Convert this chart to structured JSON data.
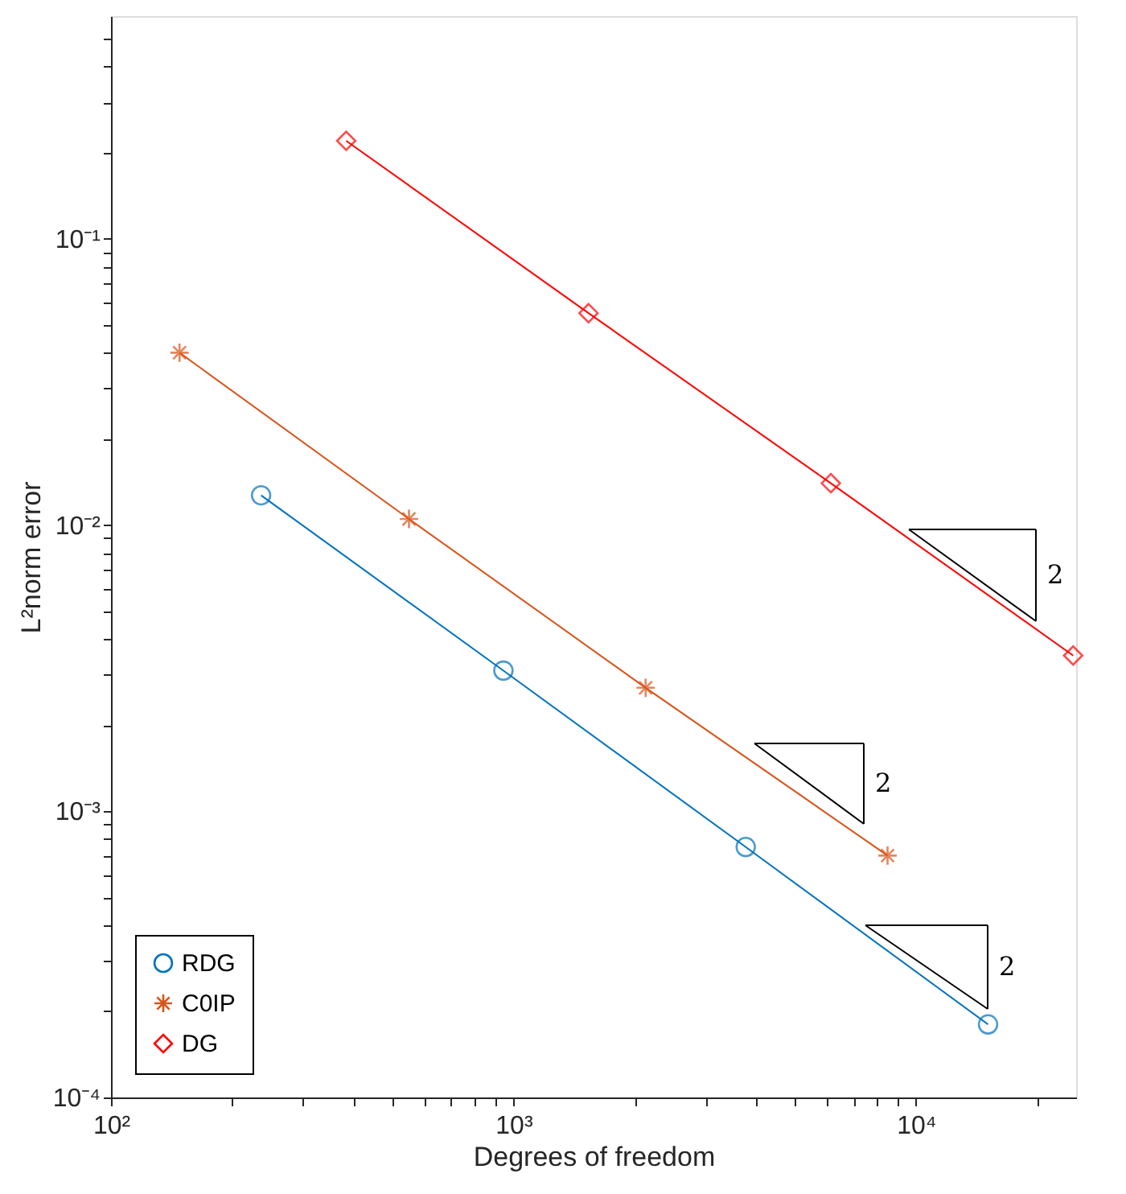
{
  "chart_data": {
    "type": "line",
    "xlabel": "Degrees of freedom",
    "ylabel": "L²norm error",
    "log": "xy",
    "grid": false,
    "legend": "bottom left",
    "line_style": "solid",
    "xlim": [
      100,
      25000
    ],
    "ylim": [
      0.0001,
      0.6
    ],
    "xticks": [
      {
        "value": 100,
        "label": "10²"
      },
      {
        "value": 200,
        "label": null
      },
      {
        "value": 300,
        "label": null
      },
      {
        "value": 400,
        "label": null
      },
      {
        "value": 500,
        "label": null
      },
      {
        "value": 600,
        "label": null
      },
      {
        "value": 700,
        "label": null
      },
      {
        "value": 800,
        "label": null
      },
      {
        "value": 900,
        "label": null
      },
      {
        "value": 1000,
        "label": "10³"
      },
      {
        "value": 2000,
        "label": null
      },
      {
        "value": 3000,
        "label": null
      },
      {
        "value": 4000,
        "label": null
      },
      {
        "value": 5000,
        "label": null
      },
      {
        "value": 6000,
        "label": null
      },
      {
        "value": 7000,
        "label": null
      },
      {
        "value": 8000,
        "label": null
      },
      {
        "value": 9000,
        "label": null
      },
      {
        "value": 10000,
        "label": "10⁴"
      },
      {
        "value": 20000,
        "label": null
      }
    ],
    "yticks": [
      {
        "value": 0.0001,
        "label": "10⁻⁴"
      },
      {
        "value": 0.0002,
        "label": null
      },
      {
        "value": 0.0003,
        "label": null
      },
      {
        "value": 0.0004,
        "label": null
      },
      {
        "value": 0.0005,
        "label": null
      },
      {
        "value": 0.0006,
        "label": null
      },
      {
        "value": 0.0007,
        "label": null
      },
      {
        "value": 0.0008,
        "label": null
      },
      {
        "value": 0.0009,
        "label": null
      },
      {
        "value": 0.001,
        "label": "10⁻³"
      },
      {
        "value": 0.002,
        "label": null
      },
      {
        "value": 0.003,
        "label": null
      },
      {
        "value": 0.004,
        "label": null
      },
      {
        "value": 0.005,
        "label": null
      },
      {
        "value": 0.006,
        "label": null
      },
      {
        "value": 0.007,
        "label": null
      },
      {
        "value": 0.008,
        "label": null
      },
      {
        "value": 0.009,
        "label": null
      },
      {
        "value": 0.01,
        "label": "10⁻²"
      },
      {
        "value": 0.02,
        "label": null
      },
      {
        "value": 0.03,
        "label": null
      },
      {
        "value": 0.04,
        "label": null
      },
      {
        "value": 0.05,
        "label": null
      },
      {
        "value": 0.06,
        "label": null
      },
      {
        "value": 0.07,
        "label": null
      },
      {
        "value": 0.08,
        "label": null
      },
      {
        "value": 0.09,
        "label": null
      },
      {
        "value": 0.1,
        "label": "10⁻¹"
      },
      {
        "value": 0.2,
        "label": null
      },
      {
        "value": 0.3,
        "label": null
      },
      {
        "value": 0.4,
        "label": null
      },
      {
        "value": 0.5,
        "label": null
      }
    ],
    "series": [
      {
        "name": "RDG",
        "color": "#0072bd",
        "marker": "circle",
        "x": [
          236,
          944,
          3776,
          15104
        ],
        "values": [
          0.0127,
          0.0031,
          0.00075,
          0.00018
        ]
      },
      {
        "name": "C0IP",
        "color": "#d95319",
        "marker": "cross",
        "x": [
          148,
          550,
          2130,
          8500
        ],
        "values": [
          0.04,
          0.0105,
          0.0027,
          0.0007
        ]
      },
      {
        "name": "DG",
        "color": "#ff0000",
        "marker": "diamond",
        "x": [
          384,
          1536,
          6144,
          24576
        ],
        "values": [
          0.22,
          0.055,
          0.014,
          0.0035
        ]
      }
    ],
    "annotations": [
      "2",
      "2",
      "2"
    ]
  }
}
